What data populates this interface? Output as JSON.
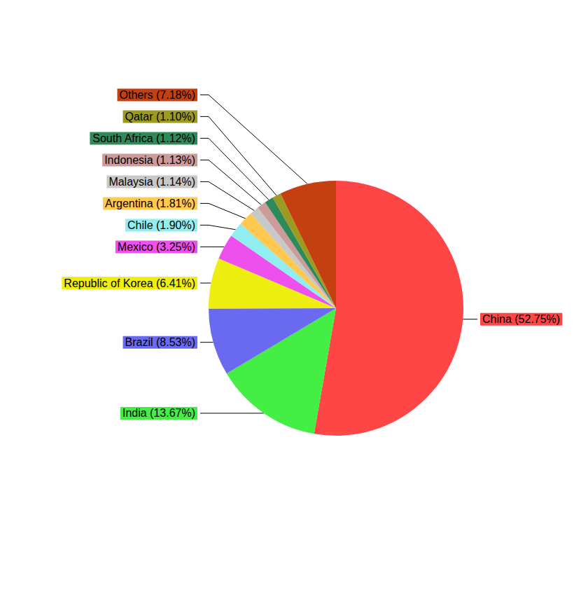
{
  "chart_data": {
    "type": "pie",
    "categories": [
      "China (52.75%)",
      "India (13.67%)",
      "Brazil (8.53%)",
      "Republic of Korea (6.41%)",
      "Mexico (3.25%)",
      "Chile (1.90%)",
      "Argentina (1.81%)",
      "Malaysia (1.14%)",
      "Indonesia (1.13%)",
      "South Africa (1.12%)",
      "Qatar (1.10%)",
      "Others (7.18%)"
    ],
    "values": [
      52.75,
      13.67,
      8.53,
      6.41,
      3.25,
      1.9,
      1.81,
      1.14,
      1.13,
      1.12,
      1.1,
      7.18
    ],
    "colors": [
      "#ff4646",
      "#44ee44",
      "#6a6af0",
      "#eeee10",
      "#ee50ee",
      "#90eef0",
      "#ffc850",
      "#c8c8c8",
      "#cc9c9c",
      "#2e8a5a",
      "#9c9a20",
      "#c44010"
    ]
  }
}
